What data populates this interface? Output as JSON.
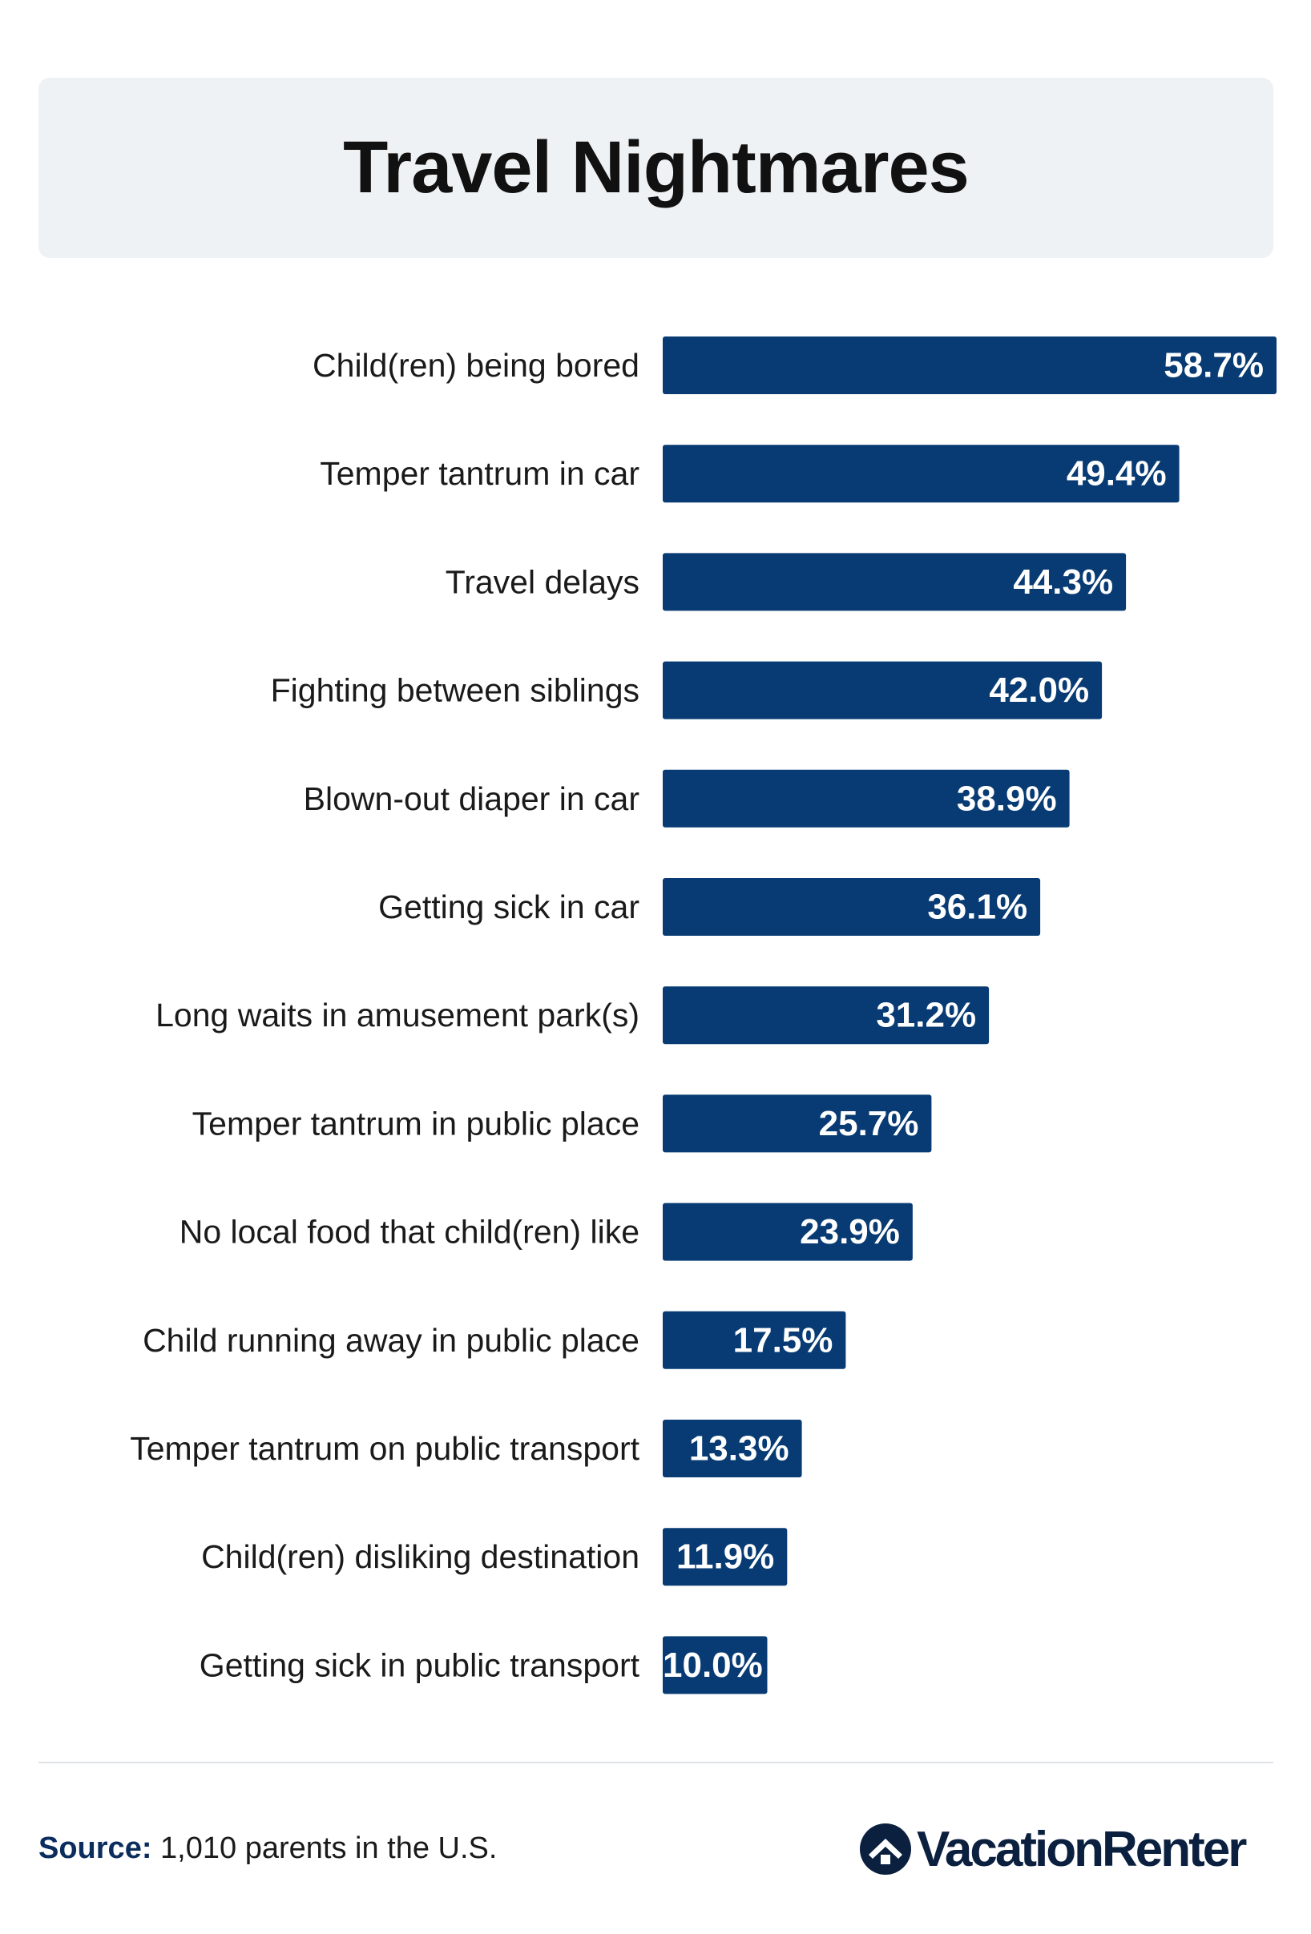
{
  "title": "Travel Nightmares",
  "colors": {
    "bar": "#083b73",
    "bar_label": "#ffffff",
    "category_label": "#1a1a1a",
    "title_background": "#eff2f5",
    "source_label": "#0b2d5e"
  },
  "chart_data": {
    "type": "bar",
    "orientation": "horizontal",
    "categories": [
      "Child(ren) being bored",
      "Temper tantrum in car",
      "Travel delays",
      "Fighting between siblings",
      "Blown-out diaper in car",
      "Getting sick in car",
      "Long waits in amusement park(s)",
      "Temper tantrum in public place",
      "No local food that child(ren) like",
      "Child running away in public place",
      "Temper tantrum on public transport",
      "Child(ren) disliking destination",
      "Getting sick in public transport"
    ],
    "values": [
      58.7,
      49.4,
      44.3,
      42.0,
      38.9,
      36.1,
      31.2,
      25.7,
      23.9,
      17.5,
      13.3,
      11.9,
      10.0
    ],
    "value_labels": [
      "58.7%",
      "49.4%",
      "44.3%",
      "42.0%",
      "38.9%",
      "36.1%",
      "31.2%",
      "25.7%",
      "23.9%",
      "17.5%",
      "13.3%",
      "11.9%",
      "10.0%"
    ],
    "xlim": [
      0,
      58.7
    ],
    "grid": false,
    "legend": false
  },
  "footer": {
    "source_label": "Source:",
    "source_text": " 1,010 parents in the U.S.",
    "logo_text": "VacationRenter",
    "logo_icon": "house-icon"
  }
}
